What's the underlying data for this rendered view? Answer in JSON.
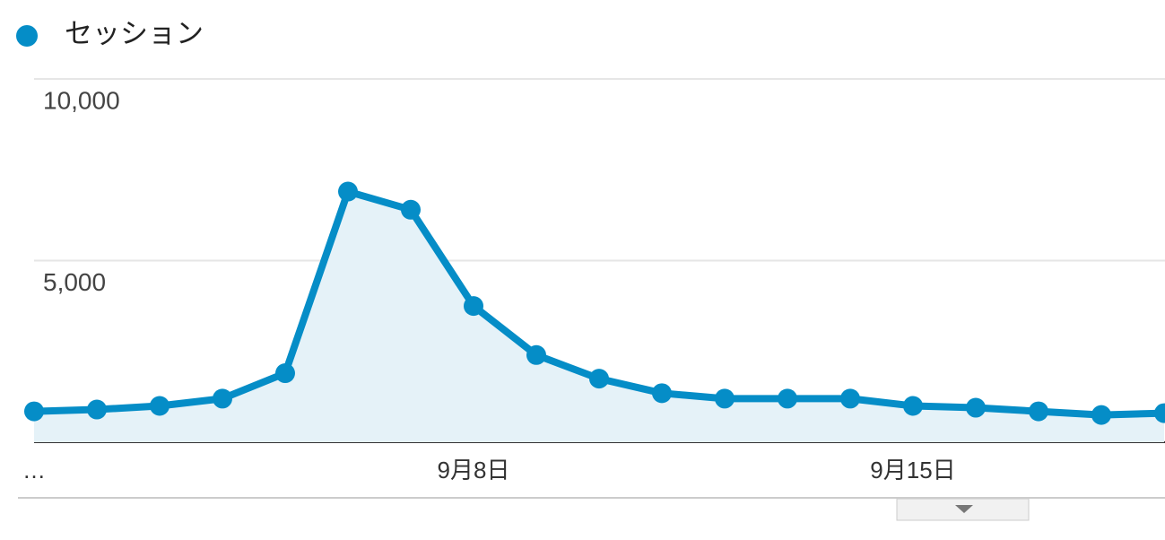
{
  "chart_data": {
    "type": "line",
    "categories": [
      "…",
      null,
      null,
      null,
      null,
      null,
      null,
      "9月8日",
      null,
      null,
      null,
      null,
      null,
      null,
      "9月15日",
      null,
      null,
      null,
      null
    ],
    "series": [
      {
        "name": "セッション",
        "color": "#058dc7",
        "values": [
          850,
          900,
          1000,
          1200,
          1900,
          6900,
          6400,
          3750,
          2400,
          1750,
          1350,
          1200,
          1200,
          1200,
          1000,
          950,
          850,
          750,
          800
        ]
      }
    ],
    "ylim": [
      0,
      10000
    ],
    "yticks": [
      {
        "value": 5000,
        "label": "5,000"
      },
      {
        "value": 10000,
        "label": "10,000"
      }
    ],
    "grid": true
  }
}
